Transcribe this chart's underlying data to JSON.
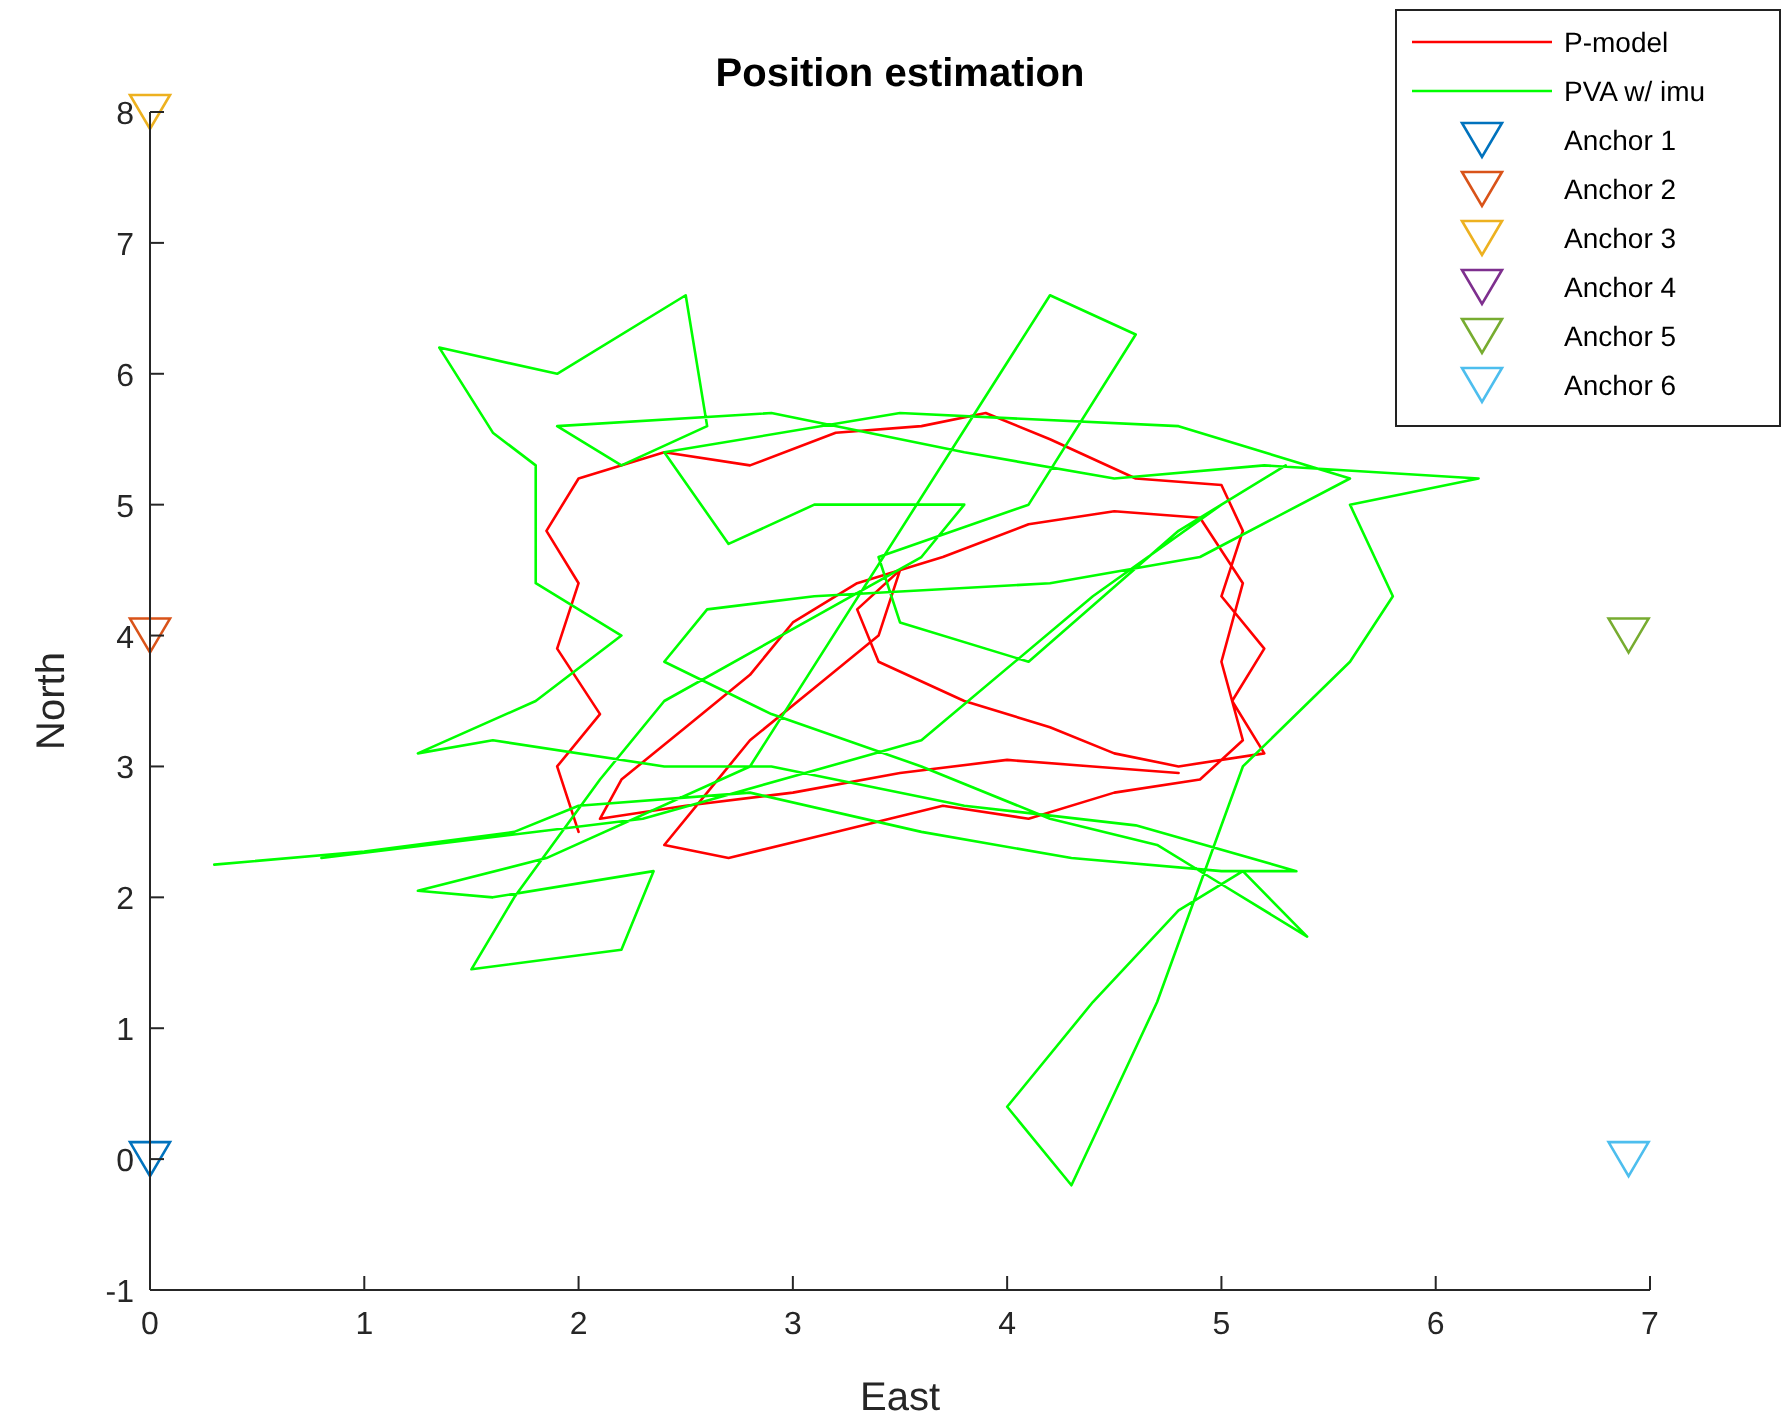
{
  "chart_data": {
    "type": "line",
    "title": "Position estimation",
    "xlabel": "East",
    "ylabel": "North",
    "xlim": [
      0,
      7
    ],
    "ylim": [
      -1,
      8
    ],
    "xticks": [
      0,
      1,
      2,
      3,
      4,
      5,
      6,
      7
    ],
    "yticks": [
      -1,
      0,
      1,
      2,
      3,
      4,
      5,
      6,
      7,
      8
    ],
    "legend": "top right",
    "grid": false,
    "series": [
      {
        "name": "P-model",
        "color": "#ff0000",
        "x": [
          2.0,
          1.9,
          2.1,
          1.9,
          2.0,
          1.85,
          2.0,
          2.4,
          2.8,
          3.2,
          3.6,
          3.9,
          4.2,
          4.6,
          5.0,
          5.1,
          5.0,
          5.2,
          5.05,
          5.2,
          4.8,
          4.5,
          4.2,
          3.8,
          3.4,
          3.3,
          3.5,
          3.4,
          3.1,
          2.8,
          2.6,
          2.4,
          2.7,
          3.2,
          3.7,
          4.1,
          4.5,
          4.9,
          5.1,
          5.0,
          5.1,
          4.9,
          4.5,
          4.1,
          3.7,
          3.3,
          3.0,
          2.8,
          2.5,
          2.2,
          2.1,
          2.5,
          3.0,
          3.5,
          4.0,
          4.4,
          4.8
        ],
        "values": [
          2.5,
          3.0,
          3.4,
          3.9,
          4.4,
          4.8,
          5.2,
          5.4,
          5.3,
          5.55,
          5.6,
          5.7,
          5.5,
          5.2,
          5.15,
          4.8,
          4.3,
          3.9,
          3.5,
          3.1,
          3.0,
          3.1,
          3.3,
          3.5,
          3.8,
          4.2,
          4.5,
          4.0,
          3.6,
          3.2,
          2.8,
          2.4,
          2.3,
          2.5,
          2.7,
          2.6,
          2.8,
          2.9,
          3.2,
          3.8,
          4.4,
          4.9,
          4.95,
          4.85,
          4.6,
          4.4,
          4.1,
          3.7,
          3.3,
          2.9,
          2.6,
          2.7,
          2.8,
          2.95,
          3.05,
          3.0,
          2.95
        ]
      },
      {
        "name": "PVA w/ imu",
        "color": "#00ff00",
        "x": [
          0.3,
          1.0,
          1.7,
          2.0,
          2.8,
          3.6,
          4.3,
          5.0,
          5.35,
          4.6,
          3.8,
          2.9,
          2.4,
          1.6,
          1.25,
          1.8,
          2.2,
          1.8,
          1.8,
          1.6,
          1.35,
          1.9,
          2.5,
          2.6,
          2.2,
          1.9,
          2.9,
          3.8,
          4.5,
          5.2,
          6.2,
          5.6,
          5.8,
          5.6,
          5.1,
          4.7,
          4.3,
          4.0,
          4.4,
          4.8,
          5.1,
          5.4,
          5.0,
          4.7,
          4.2,
          3.6,
          2.9,
          2.4,
          2.6,
          3.1,
          4.2,
          4.9,
          5.6,
          4.8,
          3.5,
          2.4,
          2.7,
          3.1,
          3.8,
          3.6,
          2.4,
          2.1,
          1.7,
          1.5,
          2.2,
          2.35,
          1.6,
          1.25,
          1.85,
          2.8,
          4.2,
          4.6,
          4.1,
          3.4,
          3.5,
          4.1,
          4.8,
          5.3,
          5.0,
          4.4,
          3.6,
          2.3,
          0.8
        ],
        "values": [
          2.25,
          2.35,
          2.5,
          2.7,
          2.8,
          2.5,
          2.3,
          2.2,
          2.2,
          2.55,
          2.7,
          3.0,
          3.0,
          3.2,
          3.1,
          3.5,
          4.0,
          4.4,
          5.3,
          5.55,
          6.2,
          6.0,
          6.6,
          5.6,
          5.3,
          5.6,
          5.7,
          5.4,
          5.2,
          5.3,
          5.2,
          5.0,
          4.3,
          3.8,
          3.0,
          1.2,
          -0.2,
          0.4,
          1.2,
          1.9,
          2.2,
          1.7,
          2.1,
          2.4,
          2.6,
          3.0,
          3.4,
          3.8,
          4.2,
          4.3,
          4.4,
          4.6,
          5.2,
          5.6,
          5.7,
          5.4,
          4.7,
          5.0,
          5.0,
          4.6,
          3.5,
          2.9,
          2.0,
          1.45,
          1.6,
          2.2,
          2.0,
          2.05,
          2.3,
          3.0,
          6.6,
          6.3,
          5.0,
          4.6,
          4.1,
          3.8,
          4.8,
          5.3,
          5.0,
          4.3,
          3.2,
          2.6,
          2.3
        ]
      },
      {
        "name": "Anchor 1",
        "type": "scatter",
        "marker": "triangle",
        "color": "#0072bd",
        "x": [
          0
        ],
        "values": [
          0
        ]
      },
      {
        "name": "Anchor 2",
        "type": "scatter",
        "marker": "triangle",
        "color": "#d95319",
        "x": [
          0
        ],
        "values": [
          4
        ]
      },
      {
        "name": "Anchor 3",
        "type": "scatter",
        "marker": "triangle",
        "color": "#edb120",
        "x": [
          0
        ],
        "values": [
          8
        ]
      },
      {
        "name": "Anchor 4",
        "type": "scatter",
        "marker": "triangle",
        "color": "#7e2f8e"
      },
      {
        "name": "Anchor 5",
        "type": "scatter",
        "marker": "triangle",
        "color": "#77ac30",
        "x": [
          6.9
        ],
        "values": [
          4
        ]
      },
      {
        "name": "Anchor 6",
        "type": "scatter",
        "marker": "triangle",
        "color": "#4dbeee",
        "x": [
          6.9
        ],
        "values": [
          0
        ]
      }
    ]
  }
}
